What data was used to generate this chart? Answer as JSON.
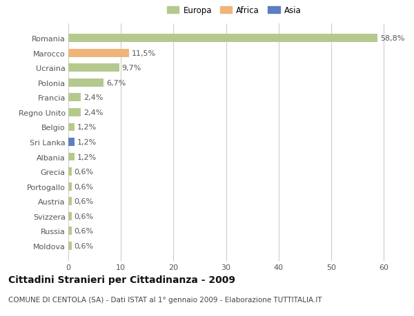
{
  "categories": [
    "Romania",
    "Marocco",
    "Ucraina",
    "Polonia",
    "Francia",
    "Regno Unito",
    "Belgio",
    "Sri Lanka",
    "Albania",
    "Grecia",
    "Portogallo",
    "Austria",
    "Svizzera",
    "Russia",
    "Moldova"
  ],
  "values": [
    58.8,
    11.5,
    9.7,
    6.7,
    2.4,
    2.4,
    1.2,
    1.2,
    1.2,
    0.6,
    0.6,
    0.6,
    0.6,
    0.6,
    0.6
  ],
  "labels": [
    "58,8%",
    "11,5%",
    "9,7%",
    "6,7%",
    "2,4%",
    "2,4%",
    "1,2%",
    "1,2%",
    "1,2%",
    "0,6%",
    "0,6%",
    "0,6%",
    "0,6%",
    "0,6%",
    "0,6%"
  ],
  "continents": [
    "Europa",
    "Africa",
    "Europa",
    "Europa",
    "Europa",
    "Europa",
    "Europa",
    "Asia",
    "Europa",
    "Europa",
    "Europa",
    "Europa",
    "Europa",
    "Europa",
    "Europa"
  ],
  "colors": {
    "Europa": "#b5c98e",
    "Africa": "#f0b47a",
    "Asia": "#5b7fc1"
  },
  "legend": [
    {
      "label": "Europa",
      "color": "#b5c98e"
    },
    {
      "label": "Africa",
      "color": "#f0b47a"
    },
    {
      "label": "Asia",
      "color": "#5b7fc1"
    }
  ],
  "xlim": [
    0,
    63
  ],
  "xticks": [
    0,
    10,
    20,
    30,
    40,
    50,
    60
  ],
  "title": "Cittadini Stranieri per Cittadinanza - 2009",
  "subtitle": "COMUNE DI CENTOLA (SA) - Dati ISTAT al 1° gennaio 2009 - Elaborazione TUTTITALIA.IT",
  "background_color": "#ffffff",
  "grid_color": "#cccccc",
  "bar_height": 0.55,
  "label_fontsize": 8,
  "title_fontsize": 10,
  "subtitle_fontsize": 7.5,
  "ytick_fontsize": 8,
  "xtick_fontsize": 8,
  "legend_fontsize": 8.5
}
